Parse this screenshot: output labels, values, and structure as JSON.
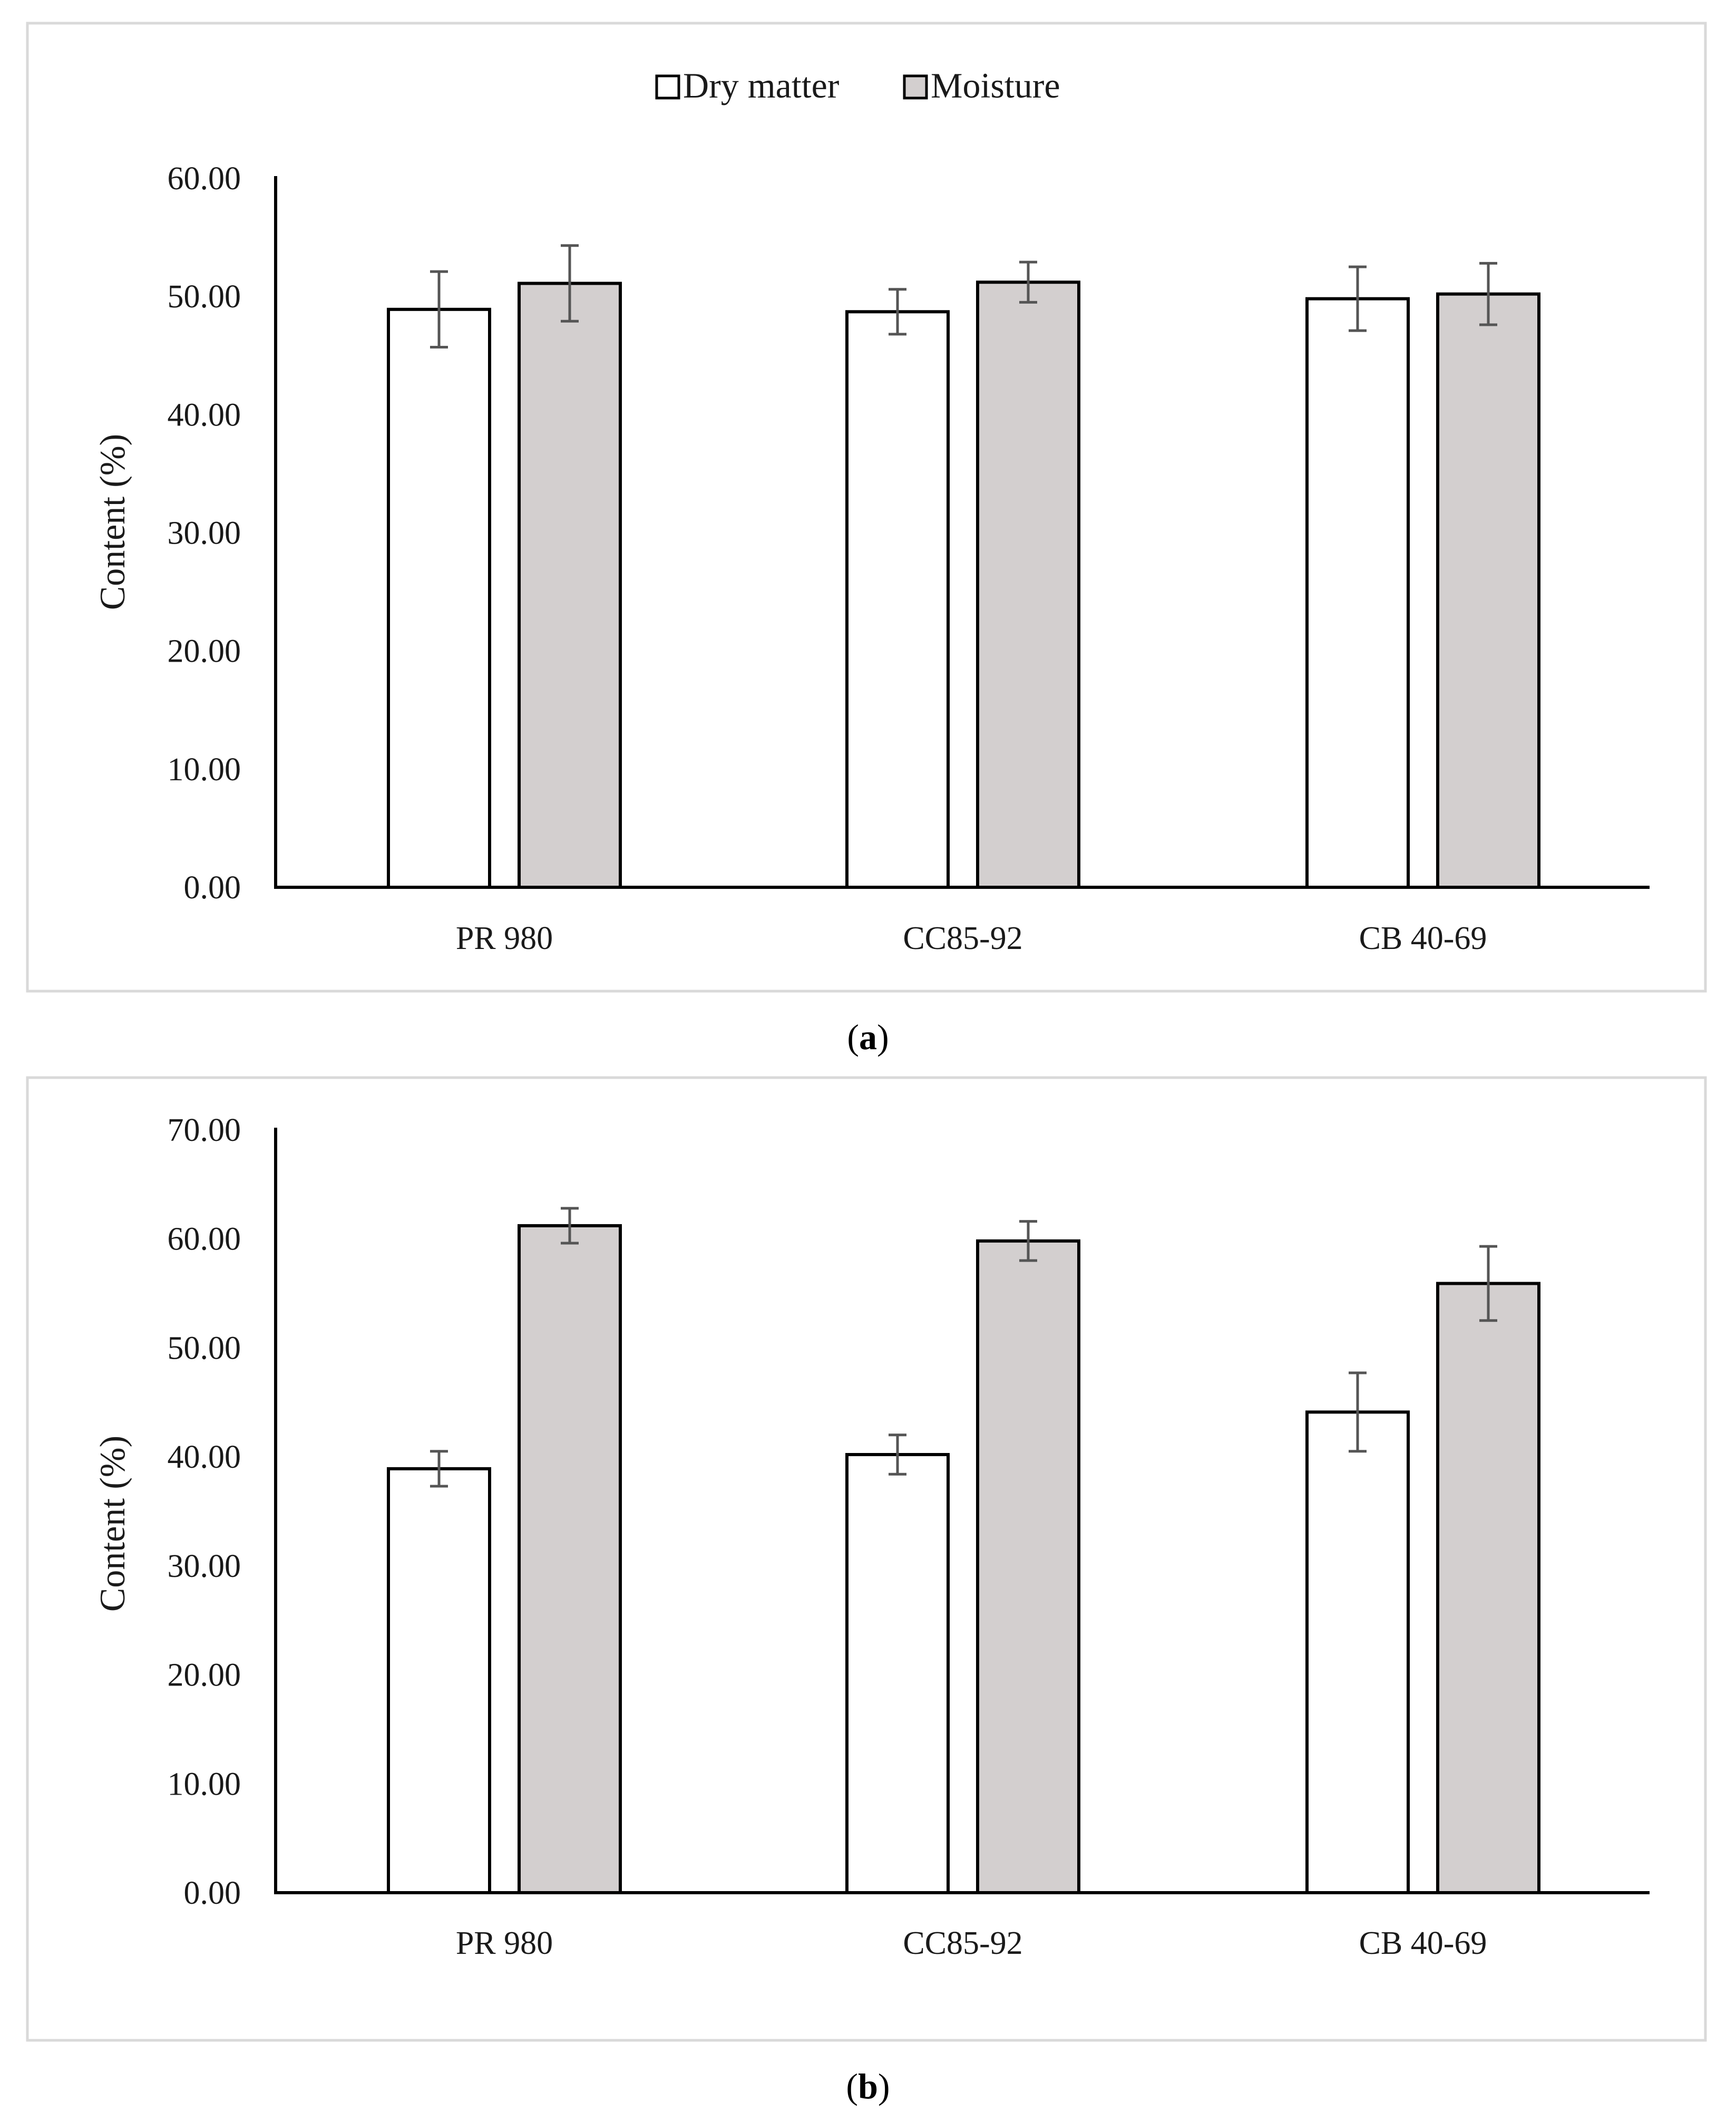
{
  "legend": {
    "items": [
      {
        "label": "Dry matter",
        "color": "#ffffff"
      },
      {
        "label": "Moisture",
        "color": "#d3cfcf"
      }
    ]
  },
  "colors": {
    "dry_matter": "#ffffff",
    "moisture": "#d3cfcf",
    "bar_stroke": "#000000",
    "error_bar": "#555555",
    "frame": "#d9d9d9"
  },
  "chart_data": [
    {
      "type": "bar",
      "panel_label": "a",
      "categories": [
        "PR 980",
        "CC85-92",
        "CB 40-69"
      ],
      "series": [
        {
          "name": "Dry matter",
          "values": [
            48.9,
            48.7,
            49.8
          ],
          "errors": [
            3.2,
            1.9,
            2.7
          ]
        },
        {
          "name": "Moisture",
          "values": [
            51.1,
            51.2,
            50.2
          ],
          "errors": [
            3.2,
            1.7,
            2.6
          ]
        }
      ],
      "ylabel": "Content (%)",
      "xlabel": "",
      "ylim": [
        0,
        60
      ],
      "yticks": [
        "0.00",
        "10.00",
        "20.00",
        "30.00",
        "40.00",
        "50.00",
        "60.00"
      ],
      "legend_position": "top-center",
      "grid": false
    },
    {
      "type": "bar",
      "panel_label": "b",
      "categories": [
        "PR 980",
        "CC85-92",
        "CB 40-69"
      ],
      "series": [
        {
          "name": "Dry matter",
          "values": [
            38.9,
            40.2,
            44.1
          ],
          "errors": [
            1.6,
            1.8,
            3.6
          ]
        },
        {
          "name": "Moisture",
          "values": [
            61.2,
            59.8,
            55.9
          ],
          "errors": [
            1.6,
            1.8,
            3.4
          ]
        }
      ],
      "ylabel": "Content (%)",
      "xlabel": "",
      "ylim": [
        0,
        70
      ],
      "yticks": [
        "0.00",
        "10.00",
        "20.00",
        "30.00",
        "40.00",
        "50.00",
        "60.00",
        "70.00"
      ],
      "legend_position": "none",
      "grid": false
    }
  ]
}
